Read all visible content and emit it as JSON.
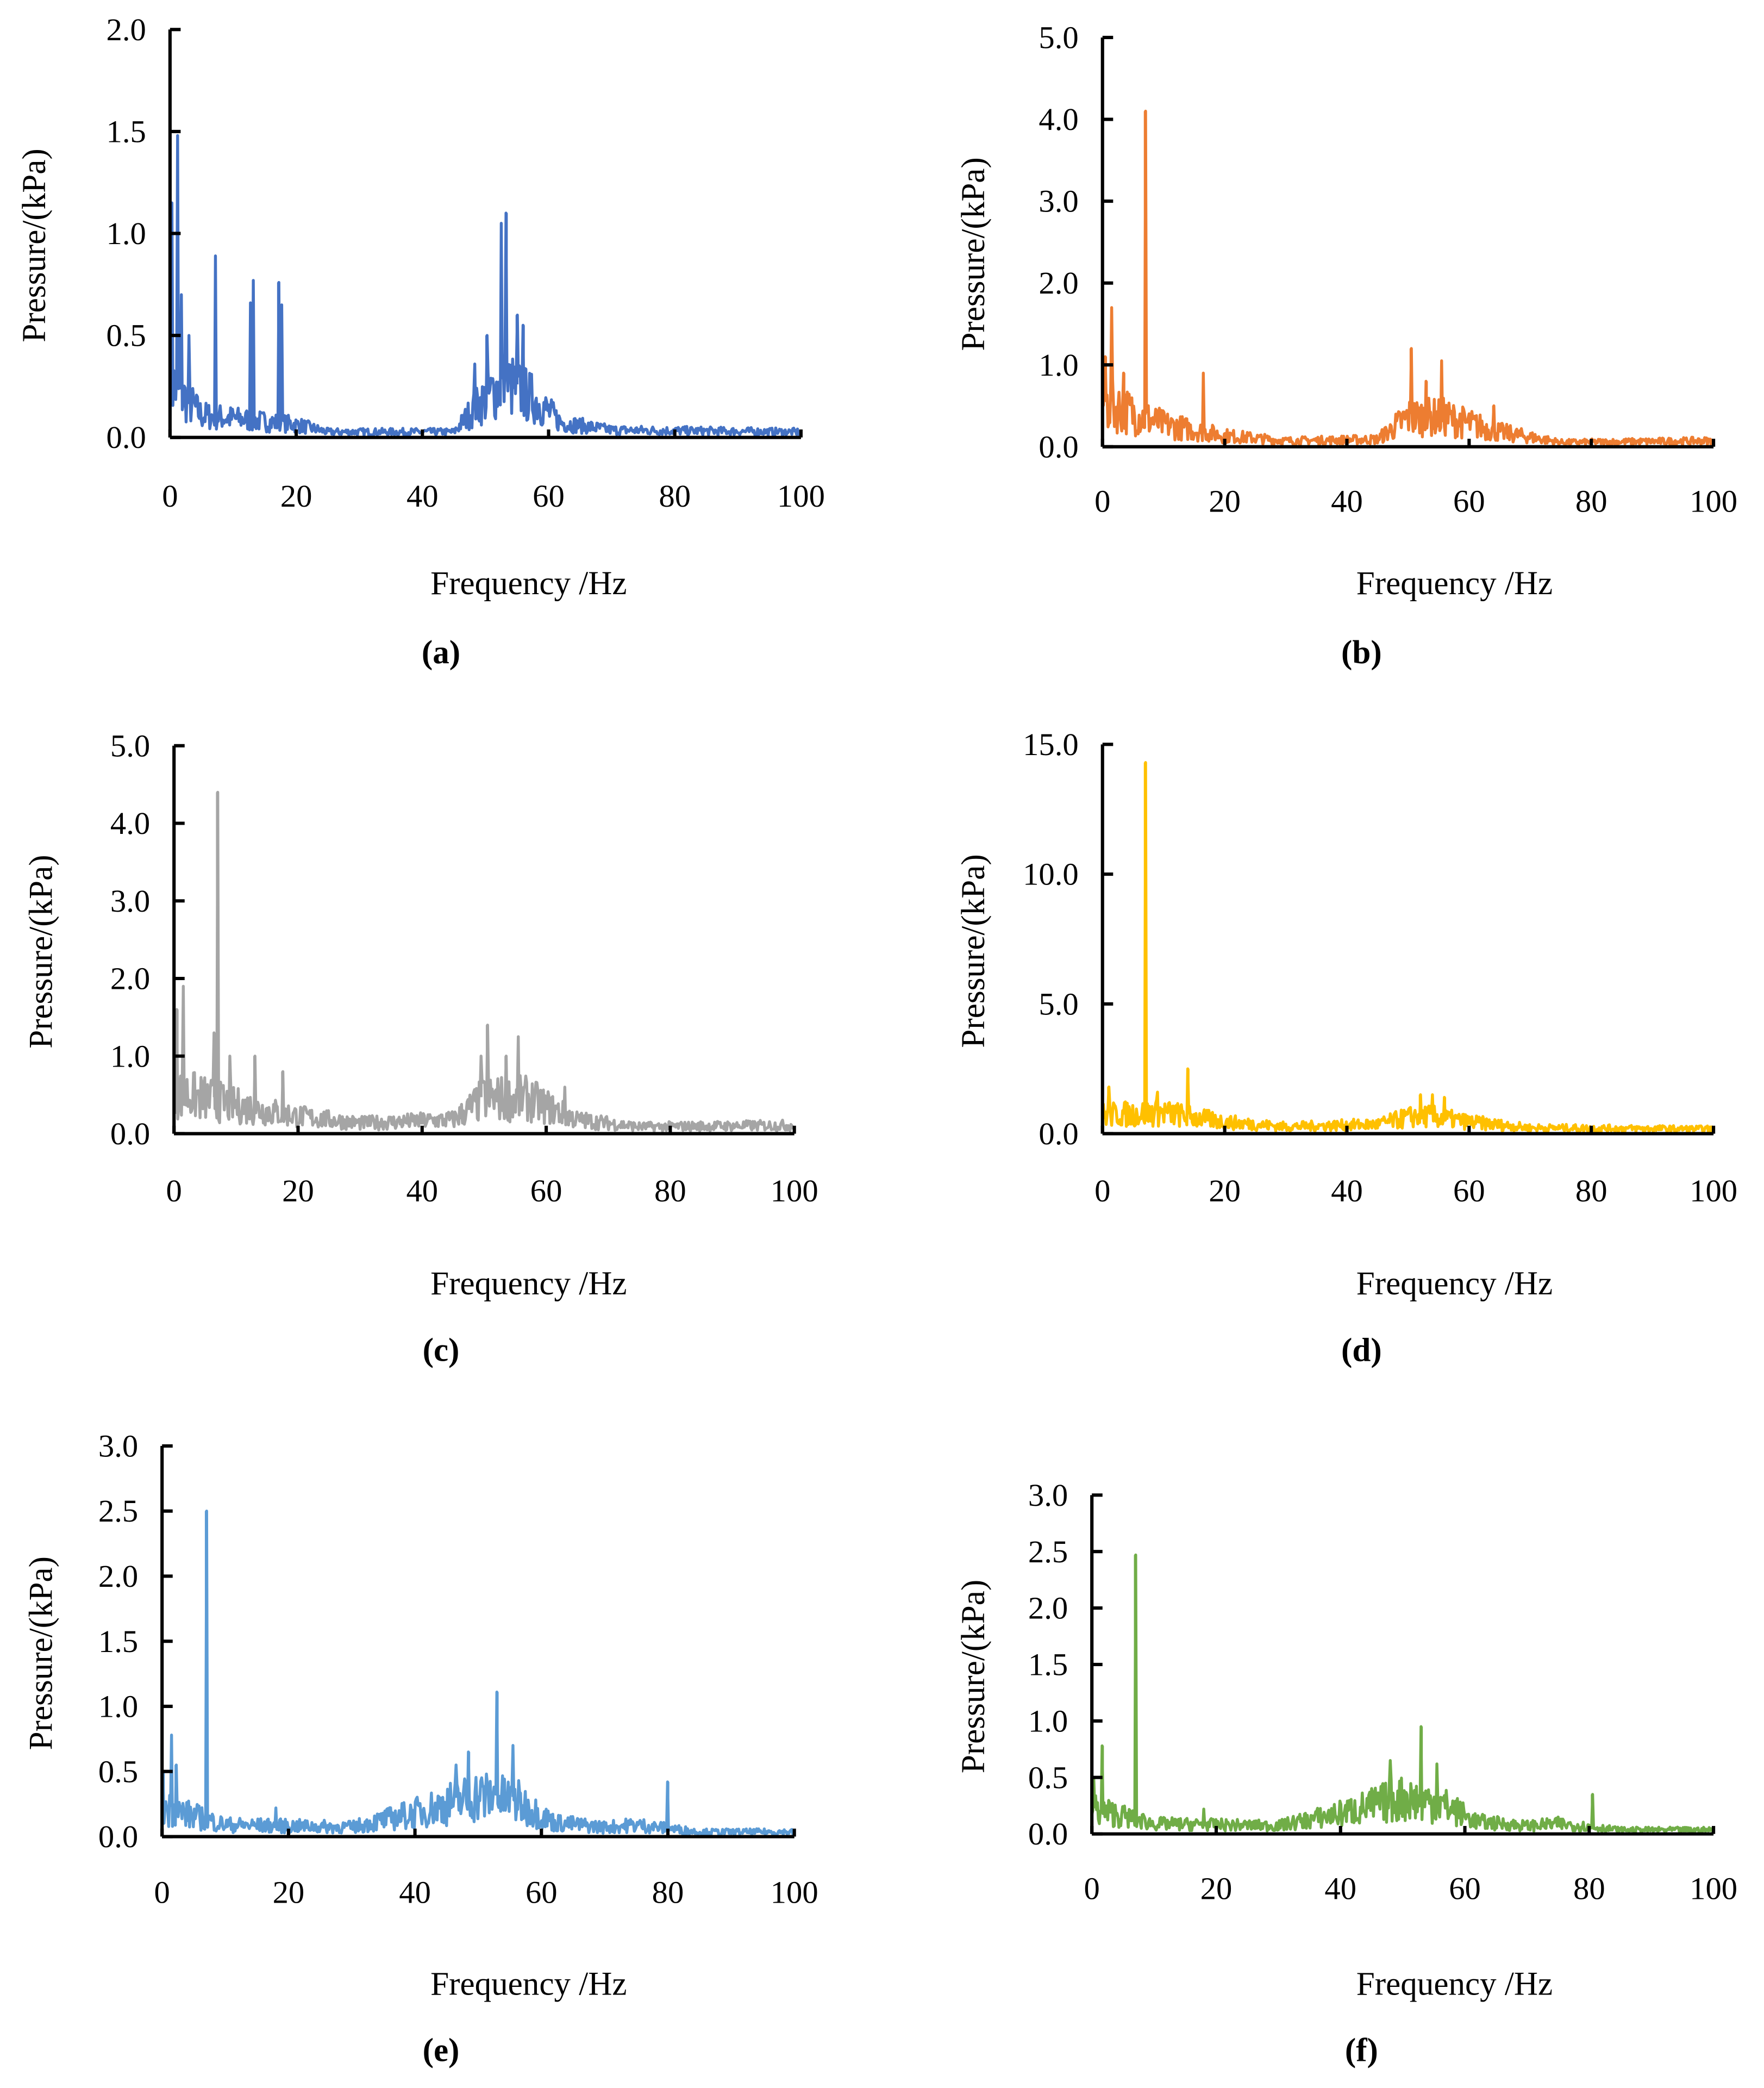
{
  "chart_data": [
    {
      "type": "line",
      "panel": "(a)",
      "color": "#4472C4",
      "xlabel": "Frequency /Hz",
      "ylabel": "Pressure/(kPa)",
      "xlim": [
        0,
        100
      ],
      "ylim": [
        0,
        2.0
      ],
      "xticks": [
        "0",
        "20",
        "40",
        "60",
        "80",
        "100"
      ],
      "yticks": [
        "0.0",
        "0.5",
        "1.0",
        "1.5",
        "2.0"
      ],
      "baseline": [
        [
          0,
          0.3
        ],
        [
          5,
          0.12
        ],
        [
          20,
          0.07
        ],
        [
          25,
          0.03
        ],
        [
          45,
          0.03
        ],
        [
          48,
          0.15
        ],
        [
          53,
          0.3
        ],
        [
          58,
          0.2
        ],
        [
          62,
          0.08
        ],
        [
          70,
          0.04
        ],
        [
          100,
          0.03
        ]
      ],
      "peaks": [
        [
          0.3,
          1.15
        ],
        [
          1.2,
          1.48
        ],
        [
          1.8,
          0.7
        ],
        [
          3,
          0.5
        ],
        [
          7.2,
          0.89
        ],
        [
          13.2,
          0.77
        ],
        [
          12.8,
          0.66
        ],
        [
          17.2,
          0.76
        ],
        [
          17.7,
          0.65
        ],
        [
          48.3,
          0.36
        ],
        [
          50.2,
          0.5
        ],
        [
          52.5,
          1.05
        ],
        [
          53.3,
          1.1
        ],
        [
          55,
          0.6
        ],
        [
          56,
          0.55
        ]
      ]
    },
    {
      "type": "line",
      "panel": "(b)",
      "color": "#ED7D31",
      "xlabel": "Frequency /Hz",
      "ylabel": "Pressure/(kPa)",
      "xlim": [
        0,
        100
      ],
      "ylim": [
        0,
        5.0
      ],
      "xticks": [
        "0",
        "20",
        "40",
        "60",
        "80",
        "100"
      ],
      "yticks": [
        "0.0",
        "1.0",
        "2.0",
        "3.0",
        "4.0",
        "5.0"
      ],
      "baseline": [
        [
          0,
          0.6
        ],
        [
          10,
          0.3
        ],
        [
          20,
          0.15
        ],
        [
          30,
          0.08
        ],
        [
          45,
          0.1
        ],
        [
          50,
          0.4
        ],
        [
          56,
          0.4
        ],
        [
          65,
          0.2
        ],
        [
          75,
          0.06
        ],
        [
          100,
          0.08
        ]
      ],
      "peaks": [
        [
          0.5,
          1.1
        ],
        [
          1.5,
          1.7
        ],
        [
          3.5,
          0.9
        ],
        [
          7,
          4.1
        ],
        [
          16.5,
          0.9
        ],
        [
          50.5,
          1.2
        ],
        [
          53,
          0.8
        ],
        [
          55.5,
          1.05
        ],
        [
          64,
          0.5
        ]
      ]
    },
    {
      "type": "line",
      "panel": "(c)",
      "color": "#A5A5A5",
      "xlabel": "Frequency /Hz",
      "ylabel": "Pressure/(kPa)",
      "xlim": [
        0,
        100
      ],
      "ylim": [
        0,
        5.0
      ],
      "xticks": [
        "0",
        "20",
        "40",
        "60",
        "80",
        "100"
      ],
      "yticks": [
        "0.0",
        "1.0",
        "2.0",
        "3.0",
        "4.0",
        "5.0"
      ],
      "baseline": [
        [
          0,
          0.6
        ],
        [
          10,
          0.4
        ],
        [
          20,
          0.25
        ],
        [
          30,
          0.15
        ],
        [
          45,
          0.2
        ],
        [
          50,
          0.5
        ],
        [
          57,
          0.5
        ],
        [
          65,
          0.2
        ],
        [
          75,
          0.1
        ],
        [
          100,
          0.12
        ]
      ],
      "peaks": [
        [
          0.5,
          1.6
        ],
        [
          1.5,
          1.9
        ],
        [
          6.5,
          1.3
        ],
        [
          7,
          4.4
        ],
        [
          9,
          1.0
        ],
        [
          13,
          1.0
        ],
        [
          17.5,
          0.8
        ],
        [
          49.5,
          1.0
        ],
        [
          50.5,
          1.4
        ],
        [
          53.5,
          1.0
        ],
        [
          55.5,
          1.25
        ],
        [
          63,
          0.6
        ]
      ]
    },
    {
      "type": "line",
      "panel": "(d)",
      "color": "#FFC000",
      "xlabel": "Frequency /Hz",
      "ylabel": "Pressure/(kPa)",
      "xlim": [
        0,
        100
      ],
      "ylim": [
        0,
        15.0
      ],
      "xticks": [
        "0",
        "20",
        "40",
        "60",
        "80",
        "100"
      ],
      "yticks": [
        "0.0",
        "5.0",
        "10.0",
        "15.0"
      ],
      "baseline": [
        [
          0,
          0.8
        ],
        [
          10,
          0.9
        ],
        [
          20,
          0.5
        ],
        [
          30,
          0.3
        ],
        [
          45,
          0.4
        ],
        [
          52,
          0.8
        ],
        [
          60,
          0.5
        ],
        [
          70,
          0.25
        ],
        [
          100,
          0.2
        ]
      ],
      "peaks": [
        [
          1,
          1.8
        ],
        [
          7,
          14.3
        ],
        [
          9,
          1.6
        ],
        [
          14,
          2.5
        ],
        [
          52,
          1.5
        ],
        [
          54,
          1.5
        ],
        [
          56,
          1.4
        ]
      ]
    },
    {
      "type": "line",
      "panel": "(e)",
      "color": "#5B9BD5",
      "xlabel": "Frequency /Hz",
      "ylabel": "Pressure/(kPa)",
      "xlim": [
        0,
        100
      ],
      "ylim": [
        0,
        3.0
      ],
      "xticks": [
        "0",
        "20",
        "40",
        "60",
        "80",
        "100"
      ],
      "yticks": [
        "0.0",
        "0.5",
        "1.0",
        "1.5",
        "2.0",
        "2.5",
        "3.0"
      ],
      "baseline": [
        [
          0,
          0.25
        ],
        [
          10,
          0.1
        ],
        [
          30,
          0.08
        ],
        [
          40,
          0.2
        ],
        [
          50,
          0.35
        ],
        [
          56,
          0.3
        ],
        [
          62,
          0.12
        ],
        [
          70,
          0.08
        ],
        [
          75,
          0.1
        ],
        [
          85,
          0.04
        ],
        [
          100,
          0.04
        ]
      ],
      "peaks": [
        [
          0.2,
          0.5
        ],
        [
          1.5,
          0.78
        ],
        [
          2.2,
          0.55
        ],
        [
          7,
          2.5
        ],
        [
          18,
          0.22
        ],
        [
          46.5,
          0.55
        ],
        [
          48.5,
          0.65
        ],
        [
          53,
          1.11
        ],
        [
          55.5,
          0.7
        ],
        [
          80,
          0.42
        ]
      ]
    },
    {
      "type": "line",
      "panel": "(f)",
      "color": "#70AD47",
      "xlabel": "Frequency /Hz",
      "ylabel": "Pressure/(kPa)",
      "xlim": [
        0,
        100
      ],
      "ylim": [
        0,
        3.0
      ],
      "xticks": [
        "0",
        "20",
        "40",
        "60",
        "80",
        "100"
      ],
      "yticks": [
        "0.0",
        "0.5",
        "1.0",
        "1.5",
        "2.0",
        "2.5",
        "3.0"
      ],
      "baseline": [
        [
          0,
          0.25
        ],
        [
          10,
          0.1
        ],
        [
          30,
          0.08
        ],
        [
          40,
          0.2
        ],
        [
          50,
          0.35
        ],
        [
          56,
          0.3
        ],
        [
          62,
          0.12
        ],
        [
          70,
          0.08
        ],
        [
          75,
          0.1
        ],
        [
          85,
          0.04
        ],
        [
          100,
          0.04
        ]
      ],
      "peaks": [
        [
          0.3,
          0.5
        ],
        [
          1.7,
          0.78
        ],
        [
          7,
          2.47
        ],
        [
          18,
          0.22
        ],
        [
          48,
          0.65
        ],
        [
          53,
          0.95
        ],
        [
          55.5,
          0.62
        ],
        [
          80.5,
          0.35
        ]
      ]
    }
  ]
}
